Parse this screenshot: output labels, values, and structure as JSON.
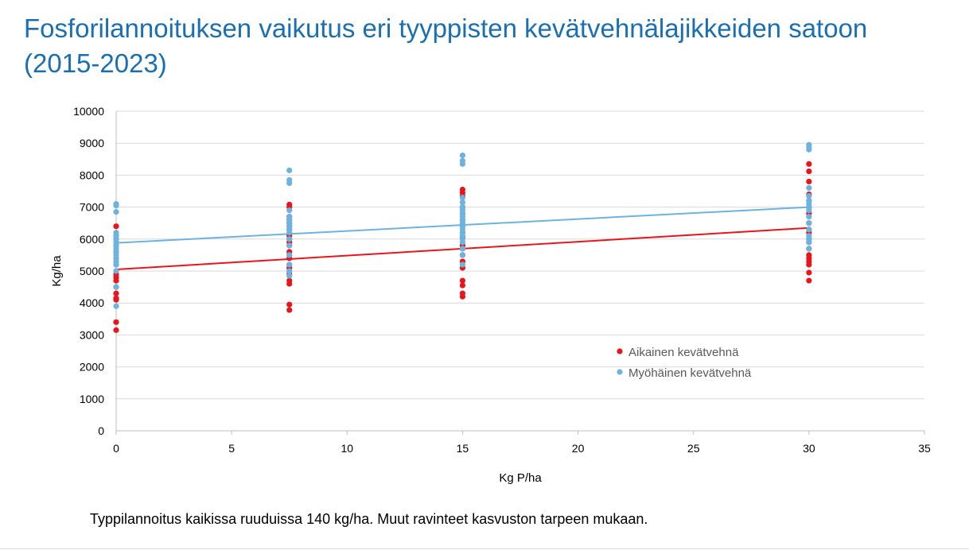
{
  "slide": {
    "title": "Fosforilannoituksen vaikutus eri tyyppisten kevätvehnälajikkeiden satoon\n (2015-2023)",
    "footnote": "Typpilannoitus kaikissa ruuduissa 140 kg/ha. Muut ravinteet kasvuston tarpeen mukaan."
  },
  "chart_data": {
    "type": "scatter",
    "xlabel": "Kg P/ha",
    "ylabel": "Kg/ha",
    "xlim": [
      0,
      35
    ],
    "ylim": [
      0,
      10000
    ],
    "xticks": [
      0,
      5,
      10,
      15,
      20,
      25,
      30,
      35
    ],
    "yticks": [
      0,
      1000,
      2000,
      3000,
      4000,
      5000,
      6000,
      7000,
      8000,
      9000,
      10000
    ],
    "grid": "horizontal",
    "legend_position": "center-right",
    "series": [
      {
        "name": "Aikainen kevätvehnä",
        "color": "#e8161c",
        "points": [
          [
            0,
            3150
          ],
          [
            0,
            3400
          ],
          [
            0,
            4100
          ],
          [
            0,
            4150
          ],
          [
            0,
            4300
          ],
          [
            0,
            4500
          ],
          [
            0,
            4700
          ],
          [
            0,
            4800
          ],
          [
            0,
            4900
          ],
          [
            0,
            5000
          ],
          [
            0,
            5200
          ],
          [
            0,
            5400
          ],
          [
            0,
            5600
          ],
          [
            0,
            5800
          ],
          [
            0,
            6000
          ],
          [
            0,
            6100
          ],
          [
            0,
            6400
          ],
          [
            7.5,
            3780
          ],
          [
            7.5,
            3950
          ],
          [
            7.5,
            4600
          ],
          [
            7.5,
            4700
          ],
          [
            7.5,
            4900
          ],
          [
            7.5,
            5000
          ],
          [
            7.5,
            5100
          ],
          [
            7.5,
            5200
          ],
          [
            7.5,
            5400
          ],
          [
            7.5,
            5500
          ],
          [
            7.5,
            5600
          ],
          [
            7.5,
            5800
          ],
          [
            7.5,
            5900
          ],
          [
            7.5,
            6000
          ],
          [
            7.5,
            6100
          ],
          [
            7.5,
            6300
          ],
          [
            7.5,
            6400
          ],
          [
            7.5,
            6500
          ],
          [
            7.5,
            6600
          ],
          [
            7.5,
            6700
          ],
          [
            7.5,
            7000
          ],
          [
            7.5,
            7080
          ],
          [
            15,
            4200
          ],
          [
            15,
            4300
          ],
          [
            15,
            4550
          ],
          [
            15,
            4700
          ],
          [
            15,
            5100
          ],
          [
            15,
            5300
          ],
          [
            15,
            5500
          ],
          [
            15,
            5700
          ],
          [
            15,
            5800
          ],
          [
            15,
            6050
          ],
          [
            15,
            6200
          ],
          [
            15,
            6400
          ],
          [
            15,
            6600
          ],
          [
            15,
            6800
          ],
          [
            15,
            7000
          ],
          [
            15,
            7350
          ],
          [
            15,
            7450
          ],
          [
            15,
            7550
          ],
          [
            30,
            4700
          ],
          [
            30,
            4950
          ],
          [
            30,
            5200
          ],
          [
            30,
            5300
          ],
          [
            30,
            5400
          ],
          [
            30,
            5500
          ],
          [
            30,
            5700
          ],
          [
            30,
            5900
          ],
          [
            30,
            6000
          ],
          [
            30,
            6200
          ],
          [
            30,
            6300
          ],
          [
            30,
            6500
          ],
          [
            30,
            6800
          ],
          [
            30,
            7000
          ],
          [
            30,
            7200
          ],
          [
            30,
            7400
          ],
          [
            30,
            7800
          ],
          [
            30,
            8120
          ],
          [
            30,
            8350
          ]
        ],
        "trendline": {
          "x": [
            0,
            30
          ],
          "y": [
            5050,
            6350
          ]
        }
      },
      {
        "name": "Myöhäinen kevätvehnä",
        "color": "#6db3e0",
        "points": [
          [
            0,
            3900
          ],
          [
            0,
            4500
          ],
          [
            0,
            5000
          ],
          [
            0,
            5200
          ],
          [
            0,
            5300
          ],
          [
            0,
            5400
          ],
          [
            0,
            5500
          ],
          [
            0,
            5600
          ],
          [
            0,
            5700
          ],
          [
            0,
            5800
          ],
          [
            0,
            5900
          ],
          [
            0,
            6000
          ],
          [
            0,
            6100
          ],
          [
            0,
            6200
          ],
          [
            0,
            6850
          ],
          [
            0,
            7050
          ],
          [
            0,
            7100
          ],
          [
            7.5,
            4850
          ],
          [
            7.5,
            5000
          ],
          [
            7.5,
            5200
          ],
          [
            7.5,
            5500
          ],
          [
            7.5,
            5800
          ],
          [
            7.5,
            6000
          ],
          [
            7.5,
            6200
          ],
          [
            7.5,
            6300
          ],
          [
            7.5,
            6400
          ],
          [
            7.5,
            6500
          ],
          [
            7.5,
            6600
          ],
          [
            7.5,
            6700
          ],
          [
            7.5,
            6900
          ],
          [
            7.5,
            7750
          ],
          [
            7.5,
            7850
          ],
          [
            7.5,
            8150
          ],
          [
            15,
            5200
          ],
          [
            15,
            5500
          ],
          [
            15,
            5700
          ],
          [
            15,
            5900
          ],
          [
            15,
            6000
          ],
          [
            15,
            6100
          ],
          [
            15,
            6200
          ],
          [
            15,
            6300
          ],
          [
            15,
            6400
          ],
          [
            15,
            6500
          ],
          [
            15,
            6600
          ],
          [
            15,
            6700
          ],
          [
            15,
            6800
          ],
          [
            15,
            6900
          ],
          [
            15,
            7000
          ],
          [
            15,
            7150
          ],
          [
            15,
            7300
          ],
          [
            15,
            8350
          ],
          [
            15,
            8450
          ],
          [
            15,
            8620
          ],
          [
            30,
            5700
          ],
          [
            30,
            5900
          ],
          [
            30,
            6000
          ],
          [
            30,
            6100
          ],
          [
            30,
            6300
          ],
          [
            30,
            6500
          ],
          [
            30,
            6700
          ],
          [
            30,
            6900
          ],
          [
            30,
            7000
          ],
          [
            30,
            7100
          ],
          [
            30,
            7200
          ],
          [
            30,
            7350
          ],
          [
            30,
            7600
          ],
          [
            30,
            8800
          ],
          [
            30,
            8870
          ],
          [
            30,
            8950
          ]
        ],
        "trendline": {
          "x": [
            0,
            30
          ],
          "y": [
            5880,
            7000
          ]
        }
      }
    ]
  }
}
